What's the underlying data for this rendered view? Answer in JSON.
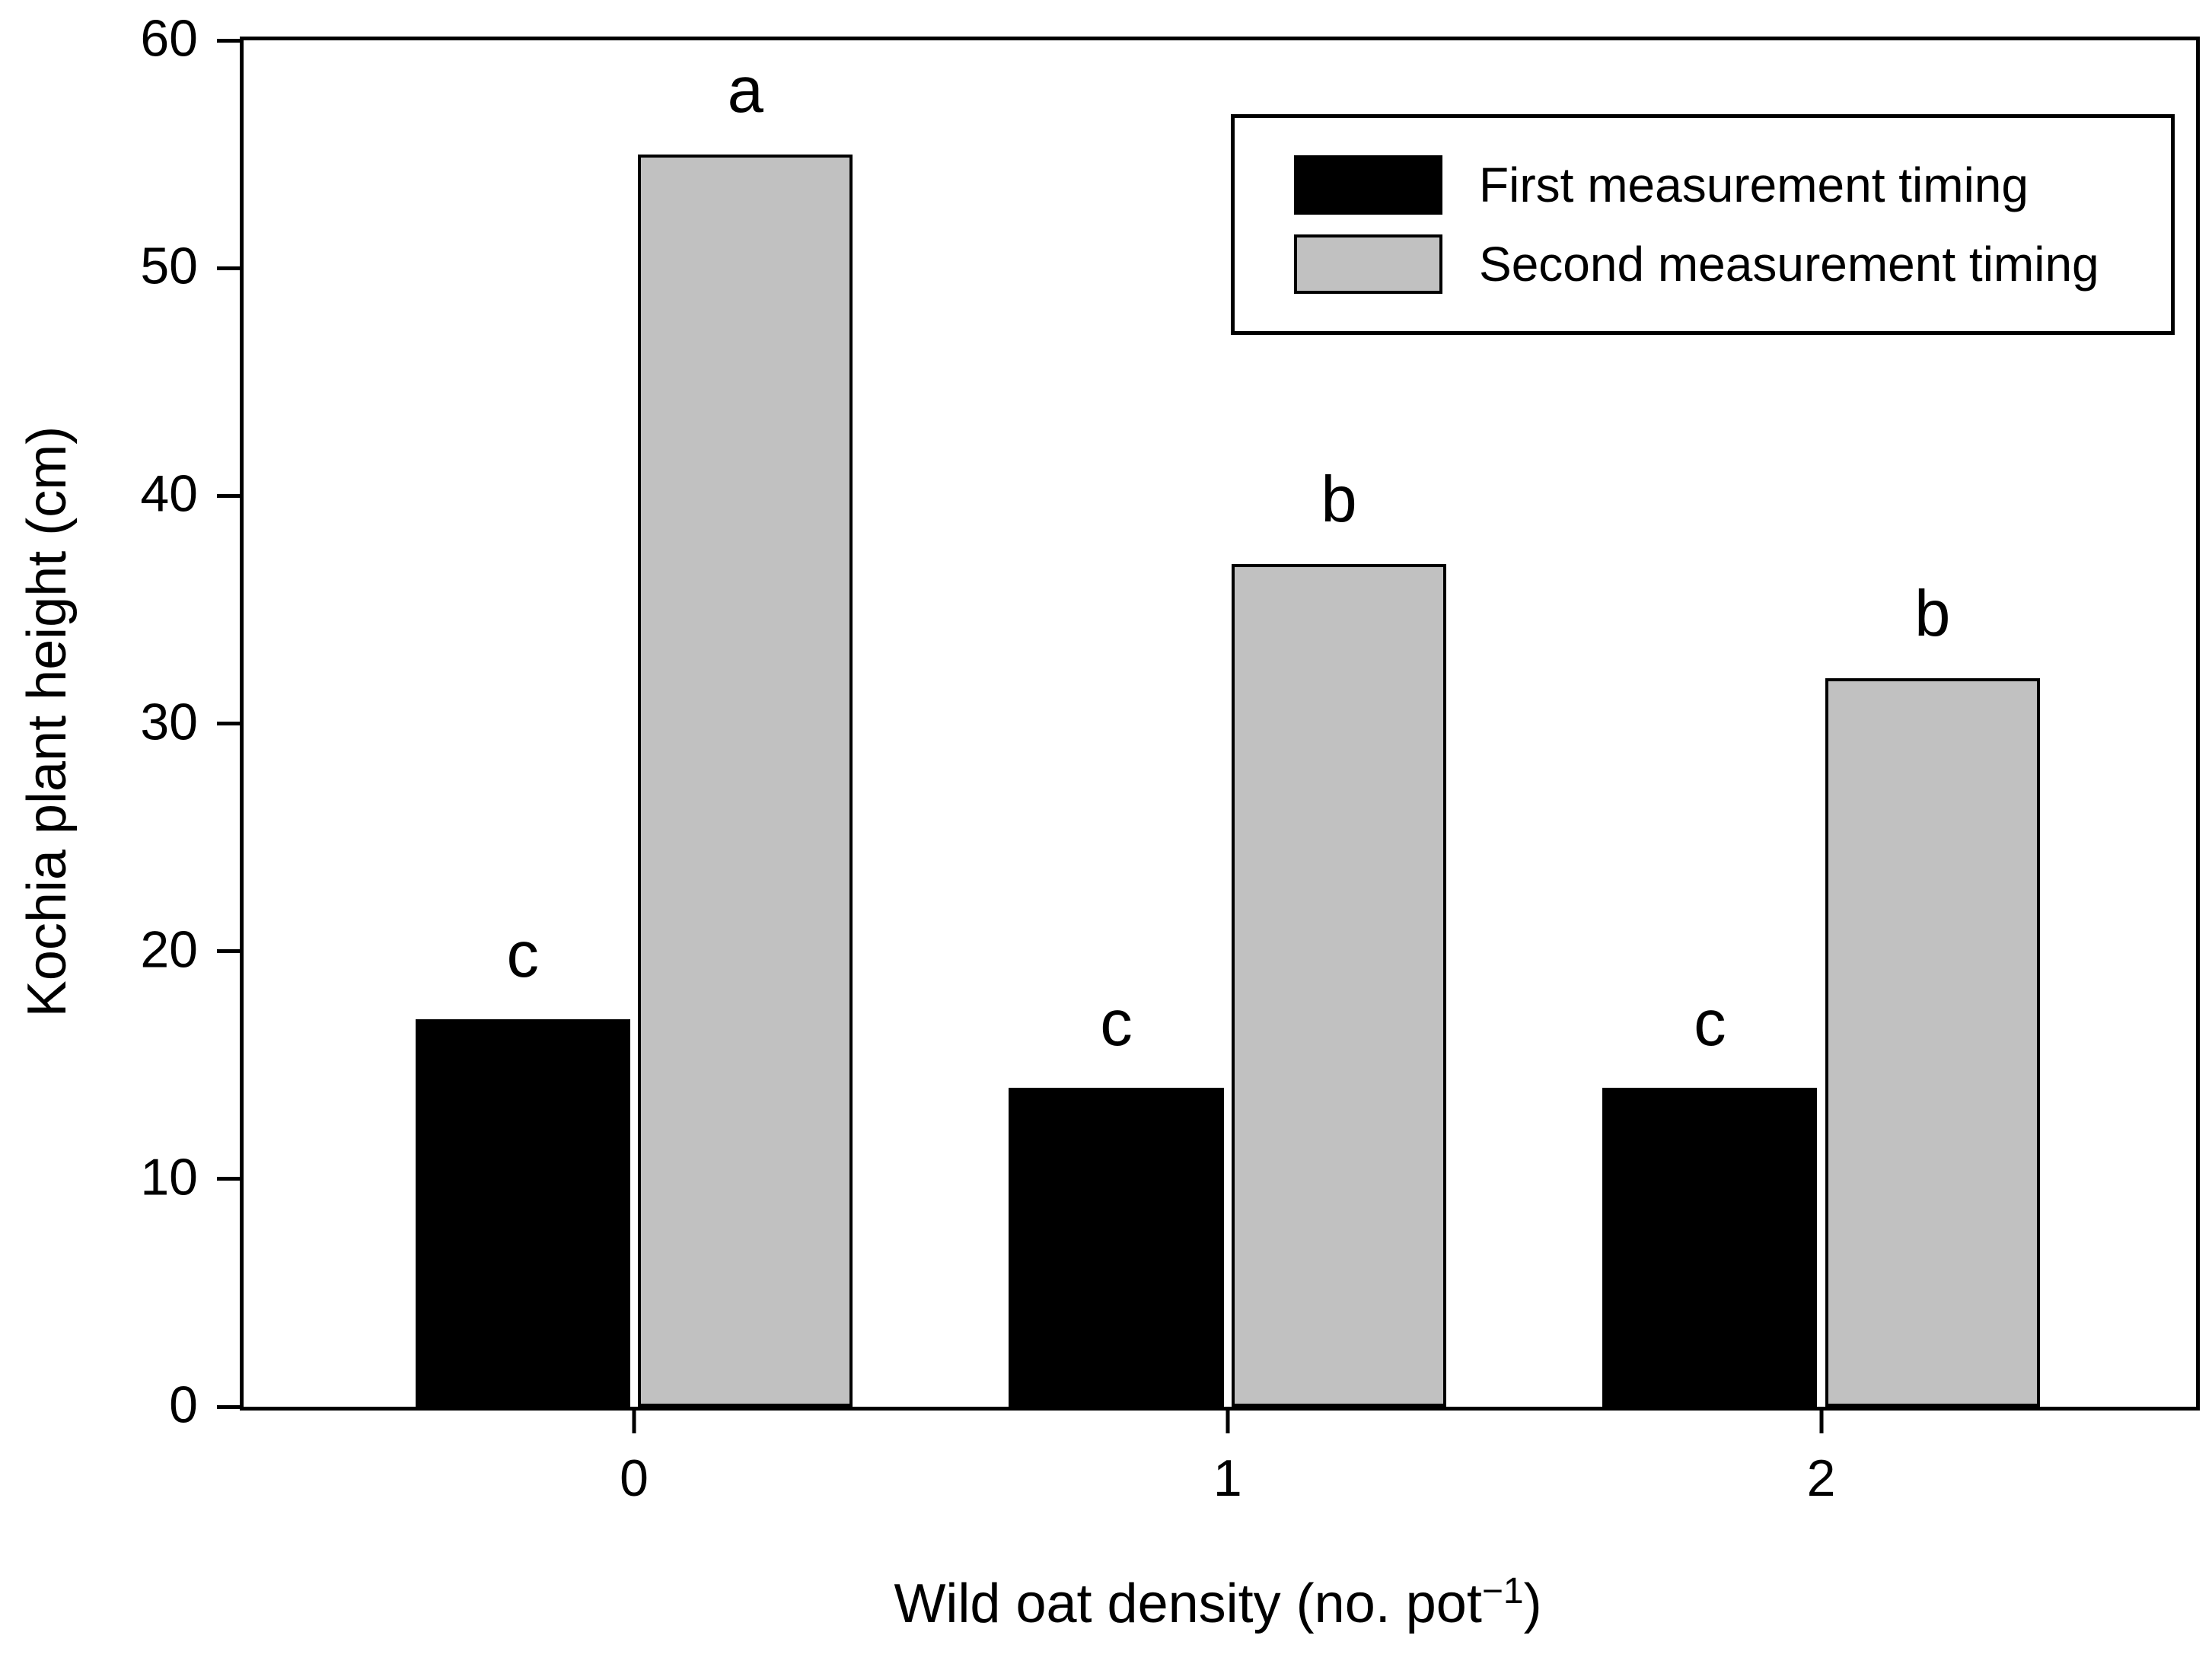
{
  "figure": {
    "background": "#ffffff",
    "frame_color": "#000000"
  },
  "chart_data": {
    "type": "bar",
    "title": "",
    "categories": [
      "0",
      "1",
      "2"
    ],
    "series": [
      {
        "name": "First measurement timing",
        "color": "#000000",
        "values": [
          17,
          14,
          14
        ],
        "significance_letters": [
          "c",
          "c",
          "c"
        ]
      },
      {
        "name": "Second measurement timing",
        "color": "#c1c1c1",
        "values": [
          55,
          37,
          32
        ],
        "significance_letters": [
          "a",
          "b",
          "b"
        ]
      }
    ],
    "xlabel": {
      "main": "Wild oat density (no. pot",
      "superscript": "−1",
      "suffix": ")"
    },
    "ylabel": "Kochia plant height (cm)",
    "ylim": [
      0,
      60
    ],
    "yticks": [
      0,
      10,
      20,
      30,
      40,
      50,
      60
    ],
    "grid": false,
    "legend_position": "top-right"
  }
}
